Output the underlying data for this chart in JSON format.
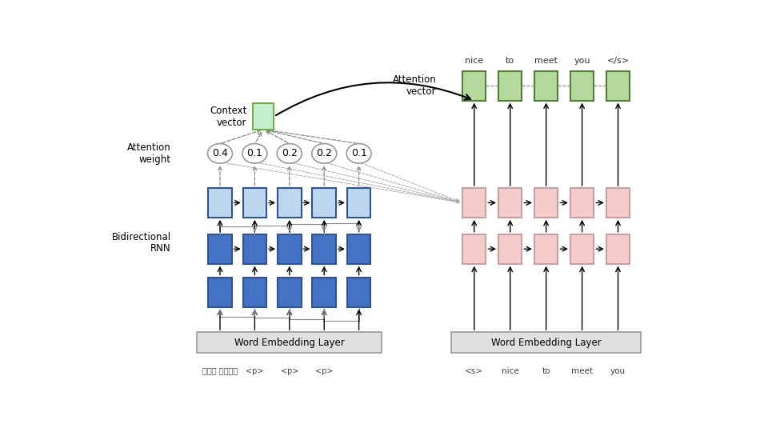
{
  "bg_color": "#ffffff",
  "enc_box_color_dark": "#4472C4",
  "enc_box_color_light": "#BDD7EE",
  "dec_box_color": "#F4CCCC",
  "dec_box_edge": "#C9A0A0",
  "attn_box_color": "#B5D99C",
  "attn_box_edge": "#507E32",
  "ctx_box_color": "#C6EFCE",
  "ctx_box_edge": "#70AD47",
  "embedding_box_color": "#E0E0E0",
  "embedding_box_edge": "#999999",
  "enc_dark_edge": "#2F5496",
  "enc_light_edge": "#2F5496",
  "attention_weights": [
    "0.4",
    "0.1",
    "0.2",
    "0.2",
    "0.1"
  ],
  "enc_bottom_labels": [
    "만나서 반가워요",
    "<p>",
    "<p>",
    "<p>"
  ],
  "dec_bottom_labels": [
    "<s>",
    "nice",
    "to",
    "meet",
    "you"
  ],
  "dec_output_labels": [
    "nice",
    "to",
    "meet",
    "you",
    "</s>"
  ]
}
